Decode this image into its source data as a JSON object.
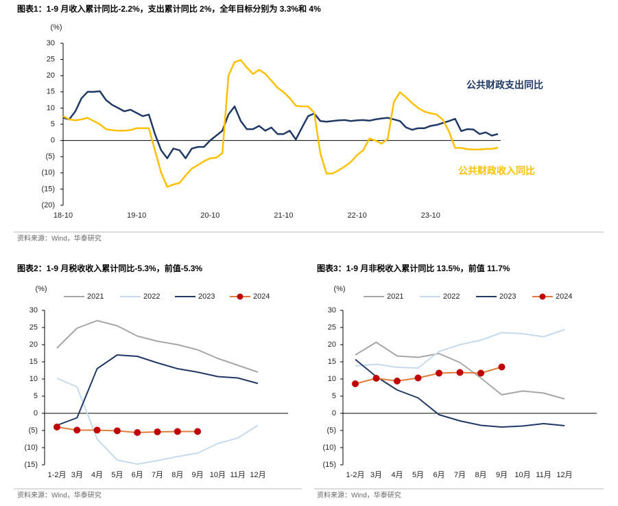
{
  "chart_data": [
    {
      "type": "line",
      "title": "图表1：1-9 月收入累计同比-2.2%，支出累计同比 2%，全年目标分别为 3.3%和 4%",
      "y_label": "(%)",
      "source": "资料来源：Wind，华泰研究",
      "categories": [
        "18-10",
        null,
        null,
        null,
        null,
        null,
        null,
        null,
        null,
        null,
        null,
        null,
        "19-10",
        null,
        null,
        null,
        null,
        null,
        null,
        null,
        null,
        null,
        null,
        null,
        "20-10",
        null,
        null,
        null,
        null,
        null,
        null,
        null,
        null,
        null,
        null,
        null,
        "21-10",
        null,
        null,
        null,
        null,
        null,
        null,
        null,
        null,
        null,
        null,
        null,
        "22-10",
        null,
        null,
        null,
        null,
        null,
        null,
        null,
        null,
        null,
        null,
        null,
        "23-10",
        null,
        null,
        null,
        null,
        null,
        null,
        null,
        null,
        null,
        null,
        null
      ],
      "series": [
        {
          "name": "公共财政支出同比",
          "color": "#1f3864",
          "values": [
            7,
            6.5,
            9,
            13,
            15,
            15,
            15.2,
            12.5,
            11,
            10,
            9,
            9.5,
            8.5,
            7.5,
            8,
            2,
            -3,
            -5.5,
            -2.5,
            -3,
            -5.5,
            -2.5,
            -2,
            -2,
            0,
            1.5,
            3,
            8,
            10.5,
            6,
            3.5,
            3.5,
            4.5,
            3,
            4,
            2,
            2,
            3,
            0.3,
            4,
            7.5,
            8.3,
            6,
            5.8,
            6,
            6.2,
            6.3,
            6,
            6.2,
            6.3,
            6.1,
            6.5,
            6.8,
            7,
            6.5,
            6,
            4,
            3.3,
            3.8,
            3.8,
            4.5,
            4.8,
            5.4,
            6,
            6.7,
            2.9,
            3.5,
            3.4,
            2,
            2.5,
            1.5,
            2
          ]
        },
        {
          "name": "公共财政收入同比",
          "color": "#ffc000",
          "values": [
            7.5,
            6.5,
            6.2,
            6.5,
            7,
            6,
            5,
            3.5,
            3.2,
            3,
            3,
            3.2,
            3.8,
            3.8,
            3.8,
            -3,
            -9.9,
            -14.3,
            -13.6,
            -13.1,
            -10.8,
            -8.7,
            -7.6,
            -6.4,
            -5.5,
            -5.3,
            -3.9,
            20,
            24.2,
            24.8,
            22.5,
            20.5,
            21.8,
            20.6,
            18.5,
            16.3,
            14.9,
            13.1,
            10.7,
            10.5,
            10.5,
            8.6,
            -4,
            -10.2,
            -10.2,
            -9.2,
            -8,
            -6.6,
            -4.5,
            -3,
            0.6,
            0,
            -1,
            0.5,
            11.9,
            14.9,
            13.3,
            11.5,
            10,
            8.9,
            8.4,
            8,
            6.4,
            2.8,
            -2.3,
            -2.3,
            -2.7,
            -2.8,
            -2.8,
            -2.6,
            -2.6,
            -2.2
          ]
        }
      ],
      "ylim": [
        -20,
        30
      ],
      "yticks": [
        30,
        25,
        20,
        15,
        10,
        5,
        0,
        {
          "value": -5,
          "label": "(5)"
        },
        {
          "value": -10,
          "label": "(10)"
        },
        {
          "value": -15,
          "label": "(15)"
        },
        {
          "value": -20,
          "label": "(20)"
        }
      ]
    },
    {
      "type": "line",
      "title": "图表2：1-9 月税收收入累计同比-5.3%，前值-5.3%",
      "y_label": "(%)",
      "source": "资料来源：Wind，华泰研究",
      "legend": "top",
      "categories": [
        "1-2月",
        "3月",
        "4月",
        "5月",
        "6月",
        "7月",
        "8月",
        "9月",
        "10月",
        "11月",
        "12月"
      ],
      "series": [
        {
          "name": "2021",
          "color": "#a6a6a6",
          "values": [
            19,
            24.8,
            27,
            25.5,
            22.5,
            21,
            20,
            18.5,
            16,
            14,
            12
          ]
        },
        {
          "name": "2022",
          "color": "#c5dbed",
          "values": [
            10.2,
            7.7,
            -7.5,
            -13.6,
            -14.8,
            -13.8,
            -12.6,
            -11.6,
            -8.8,
            -7.2,
            -3.5
          ]
        },
        {
          "name": "2023",
          "color": "#1f3864",
          "values": [
            -3.5,
            -1.3,
            13,
            17,
            16.6,
            14.7,
            13,
            12,
            10.7,
            10.3,
            8.7
          ]
        },
        {
          "name": "2024",
          "color": "#e07b39",
          "marker_color": "#c00000",
          "values": [
            -4,
            -4.9,
            -4.9,
            -5.1,
            -5.6,
            -5.4,
            -5.3,
            -5.3,
            null,
            null,
            null
          ]
        }
      ],
      "ylim": [
        -15,
        30
      ],
      "yticks": [
        30,
        25,
        20,
        15,
        10,
        5,
        0,
        {
          "value": -5,
          "label": "(5)"
        },
        {
          "value": -10,
          "label": "(10)"
        },
        {
          "value": -15,
          "label": "(15)"
        }
      ]
    },
    {
      "type": "line",
      "title": "图表3：1-9 月非税收入累计同比 13.5%，前值 11.7%",
      "y_label": "(%)",
      "source": "资料来源：Wind，华泰研究",
      "legend": "top",
      "categories": [
        "1-2月",
        "3月",
        "4月",
        "5月",
        "6月",
        "7月",
        "8月",
        "9月",
        "10月",
        "11月",
        "12月"
      ],
      "series": [
        {
          "name": "2021",
          "color": "#a6a6a6",
          "values": [
            17,
            20.7,
            16.7,
            16.3,
            17.4,
            14.8,
            10.3,
            5.4,
            6.5,
            5.9,
            4.2
          ]
        },
        {
          "name": "2022",
          "color": "#c5dbed",
          "values": [
            13.8,
            14.3,
            13.4,
            13.2,
            18,
            20,
            21.3,
            23.5,
            23.2,
            22.3,
            24.4
          ]
        },
        {
          "name": "2023",
          "color": "#1f3864",
          "values": [
            15.7,
            10.7,
            6.8,
            4.5,
            -0.4,
            -2.2,
            -3.5,
            -4,
            -3.7,
            -3,
            -3.6
          ]
        },
        {
          "name": "2024",
          "color": "#e07b39",
          "marker_color": "#c00000",
          "values": [
            8.6,
            10.2,
            9.4,
            10.3,
            11.7,
            11.9,
            11.7,
            13.5,
            null,
            null,
            null
          ]
        }
      ],
      "ylim": [
        -15,
        30
      ],
      "yticks": [
        30,
        25,
        20,
        15,
        10,
        5,
        0,
        {
          "value": -5,
          "label": "(5)"
        },
        {
          "value": -10,
          "label": "(10)"
        },
        {
          "value": -15,
          "label": "(15)"
        }
      ]
    }
  ]
}
